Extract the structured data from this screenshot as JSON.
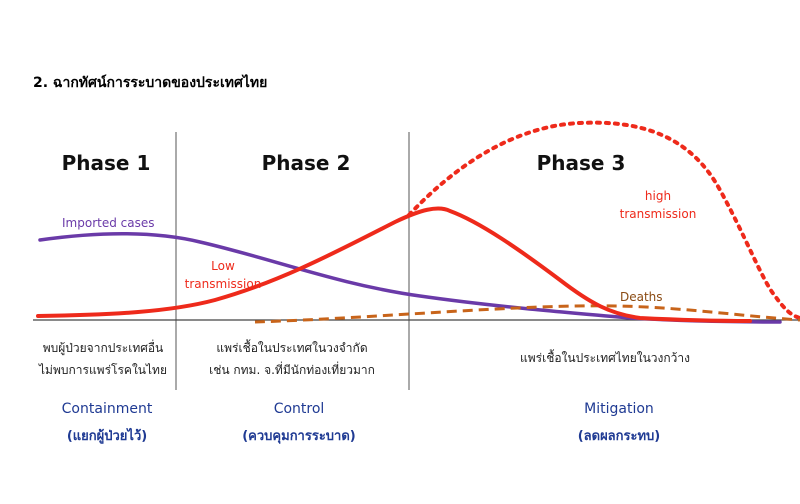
{
  "heading": "2. ฉากทัศน์การระบาดของประเทศไทย",
  "phases": [
    {
      "title": "Phase 1",
      "desc_line1": "พบผู้ป่วยจากประเทศอื่น",
      "desc_line2": "ไม่พบการแพร่โรคในไทย",
      "strategy": "Containment",
      "strategy_th": "(แยกผู้ป่วยไว้)"
    },
    {
      "title": "Phase 2",
      "desc_line1": "แพร่เชื้อในประเทศในวงจำกัด",
      "desc_line2": "เช่น กทม. จ.ที่มีนักท่องเที่ยวมาก",
      "strategy": "Control",
      "strategy_th": "(ควบคุมการระบาด)"
    },
    {
      "title": "Phase 3",
      "desc_line1": "แพร่เชื้อในประเทศไทยในวงกว้าง",
      "desc_line2": "",
      "strategy": "Mitigation",
      "strategy_th": "(ลดผลกระทบ)"
    }
  ],
  "curve_labels": {
    "imported": "Imported cases",
    "low_line1": "Low",
    "low_line2": "transmission",
    "high_line1": "high",
    "high_line2": "transmission",
    "deaths": "Deaths"
  },
  "colors": {
    "heading": "#000000",
    "phase_title": "#111111",
    "divider": "#555555",
    "baseline": "#444444",
    "imported": "#6a3aa8",
    "red": "#ee2a1b",
    "deaths": "#c8641a",
    "strategy": "#1f3a93",
    "desc": "#222222"
  }
}
